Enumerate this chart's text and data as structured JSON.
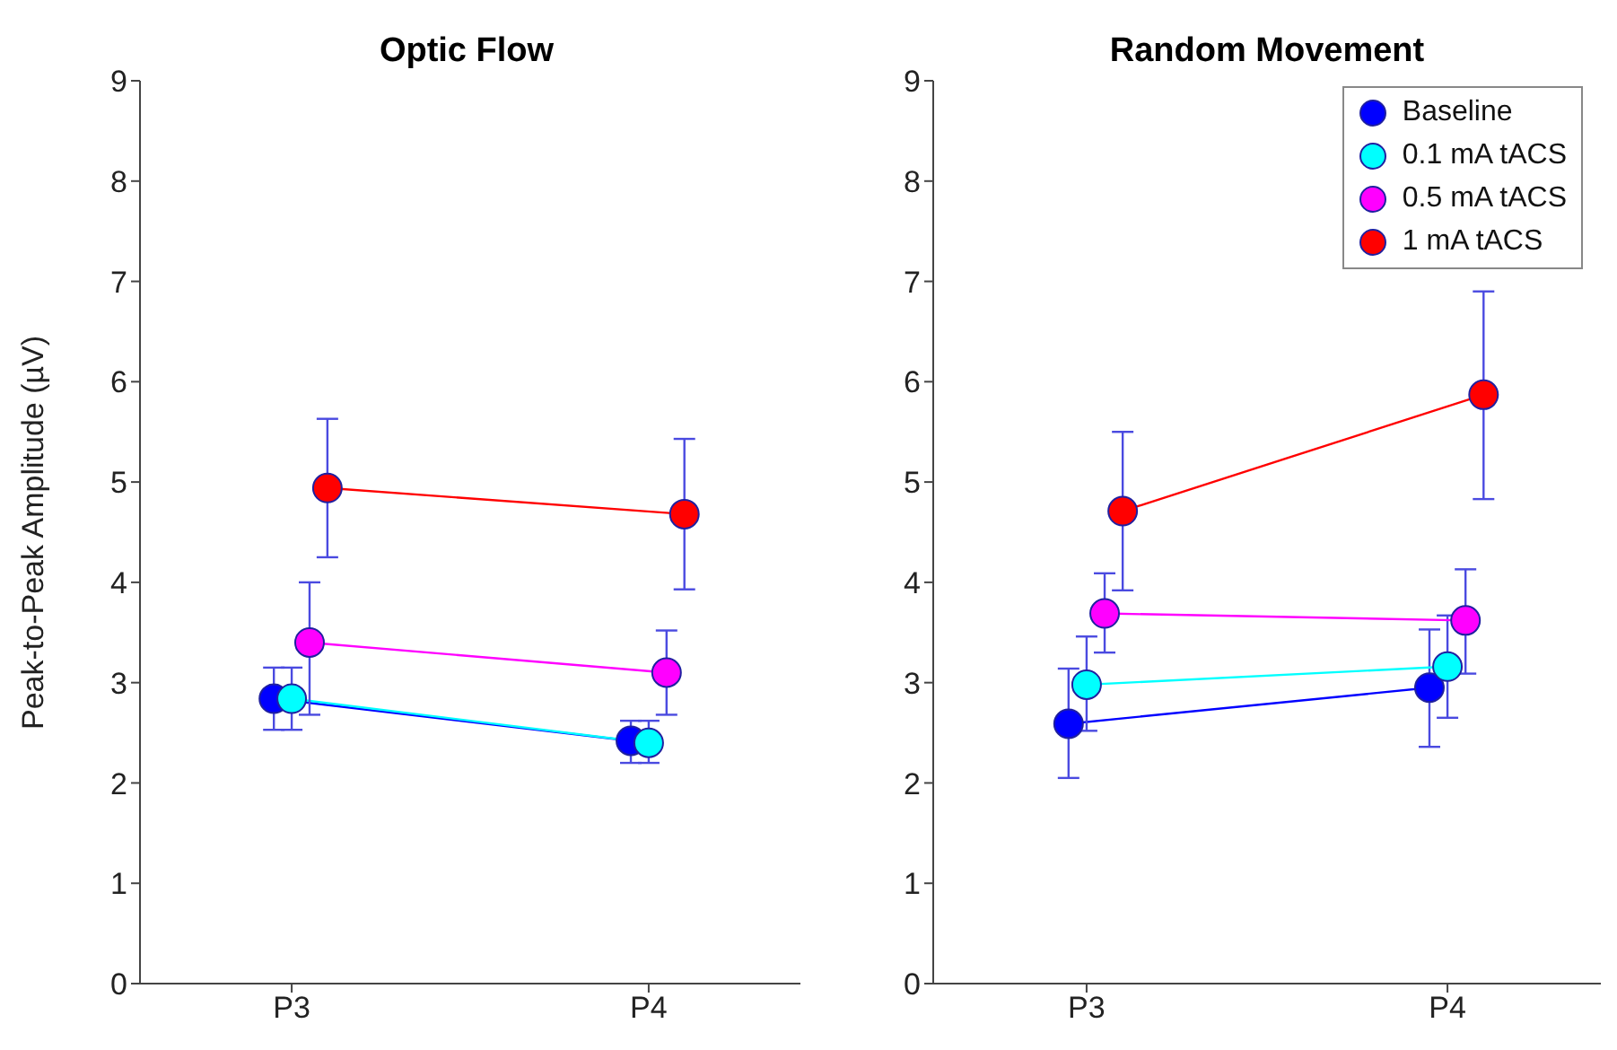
{
  "chart_data": [
    {
      "type": "line",
      "title": "Optic Flow",
      "ylabel": "Peak-to-Peak Amplitude (µV)",
      "categories": [
        "P3",
        "P4"
      ],
      "ylim": [
        0,
        9
      ],
      "yticks": [
        0,
        1,
        2,
        3,
        4,
        5,
        6,
        7,
        8,
        9
      ],
      "grid": false,
      "legend": false,
      "marker": "circle",
      "line_style": "solid",
      "series": [
        {
          "color": "#0000ff",
          "values": [
            2.84,
            2.42
          ],
          "errors": [
            [
              2.53,
              3.15
            ],
            [
              2.2,
              2.62
            ]
          ]
        },
        {
          "color": "#00ffff",
          "values": [
            2.84,
            2.4
          ],
          "errors": [
            [
              2.53,
              3.15
            ],
            [
              2.2,
              2.62
            ]
          ]
        },
        {
          "color": "#ff00ff",
          "values": [
            3.4,
            3.1
          ],
          "errors": [
            [
              2.68,
              4.0
            ],
            [
              2.68,
              3.52
            ]
          ]
        },
        {
          "color": "#ff0000",
          "values": [
            4.94,
            4.68
          ],
          "errors": [
            [
              4.25,
              5.63
            ],
            [
              3.93,
              5.43
            ]
          ]
        }
      ]
    },
    {
      "type": "line",
      "title": "Random Movement",
      "categories": [
        "P3",
        "P4"
      ],
      "ylim": [
        0,
        9
      ],
      "yticks": [
        0,
        1,
        2,
        3,
        4,
        5,
        6,
        7,
        8,
        9
      ],
      "grid": false,
      "legend": "top right",
      "marker": "circle",
      "line_style": "solid",
      "series": [
        {
          "name": "Baseline",
          "color": "#0000ff",
          "values": [
            2.59,
            2.95
          ],
          "errors": [
            [
              2.05,
              3.14
            ],
            [
              2.36,
              3.53
            ]
          ]
        },
        {
          "name": "0.1 mA tACS",
          "color": "#00ffff",
          "values": [
            2.98,
            3.16
          ],
          "errors": [
            [
              2.52,
              3.46
            ],
            [
              2.65,
              3.67
            ]
          ]
        },
        {
          "name": "0.5 mA tACS",
          "color": "#ff00ff",
          "values": [
            3.69,
            3.62
          ],
          "errors": [
            [
              3.3,
              4.09
            ],
            [
              3.09,
              4.13
            ]
          ]
        },
        {
          "name": "1 mA tACS",
          "color": "#ff0000",
          "values": [
            4.71,
            5.87
          ],
          "errors": [
            [
              3.92,
              5.5
            ],
            [
              4.83,
              6.9
            ]
          ]
        }
      ]
    }
  ]
}
